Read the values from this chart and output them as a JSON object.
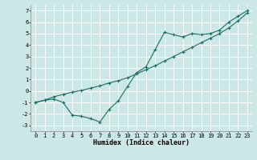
{
  "xlabel": "Humidex (Indice chaleur)",
  "bg_color": "#cce8e6",
  "grid_color": "#ffffff",
  "line_color": "#1a6e66",
  "xlim": [
    -0.5,
    23.5
  ],
  "ylim": [
    -3.5,
    7.5
  ],
  "xticks": [
    0,
    1,
    2,
    3,
    4,
    5,
    6,
    7,
    8,
    9,
    10,
    11,
    12,
    13,
    14,
    15,
    16,
    17,
    18,
    19,
    20,
    21,
    22,
    23
  ],
  "yticks": [
    -3,
    -2,
    -1,
    0,
    1,
    2,
    3,
    4,
    5,
    6,
    7
  ],
  "line1_x": [
    0,
    1,
    2,
    3,
    4,
    5,
    6,
    7,
    8,
    9,
    10,
    11,
    12,
    13,
    14,
    15,
    16,
    17,
    18,
    19,
    20,
    21,
    22,
    23
  ],
  "line1_y": [
    -1.0,
    -0.8,
    -0.7,
    -1.0,
    -2.1,
    -2.2,
    -2.4,
    -2.7,
    -1.6,
    -0.85,
    0.4,
    1.6,
    2.1,
    3.6,
    5.1,
    4.9,
    4.7,
    5.0,
    4.9,
    5.0,
    5.3,
    6.0,
    6.5,
    7.0
  ],
  "line2_x": [
    0,
    1,
    2,
    3,
    4,
    5,
    6,
    7,
    8,
    9,
    10,
    11,
    12,
    13,
    14,
    15,
    16,
    17,
    18,
    19,
    20,
    21,
    22,
    23
  ],
  "line2_y": [
    -1.0,
    -0.8,
    -0.5,
    -0.3,
    -0.1,
    0.05,
    0.25,
    0.45,
    0.7,
    0.9,
    1.15,
    1.5,
    1.85,
    2.2,
    2.6,
    3.0,
    3.4,
    3.8,
    4.2,
    4.6,
    5.0,
    5.5,
    6.1,
    6.8
  ],
  "tick_fontsize": 5.0,
  "xlabel_fontsize": 6.0,
  "marker_size": 3.0,
  "line_width": 0.8
}
